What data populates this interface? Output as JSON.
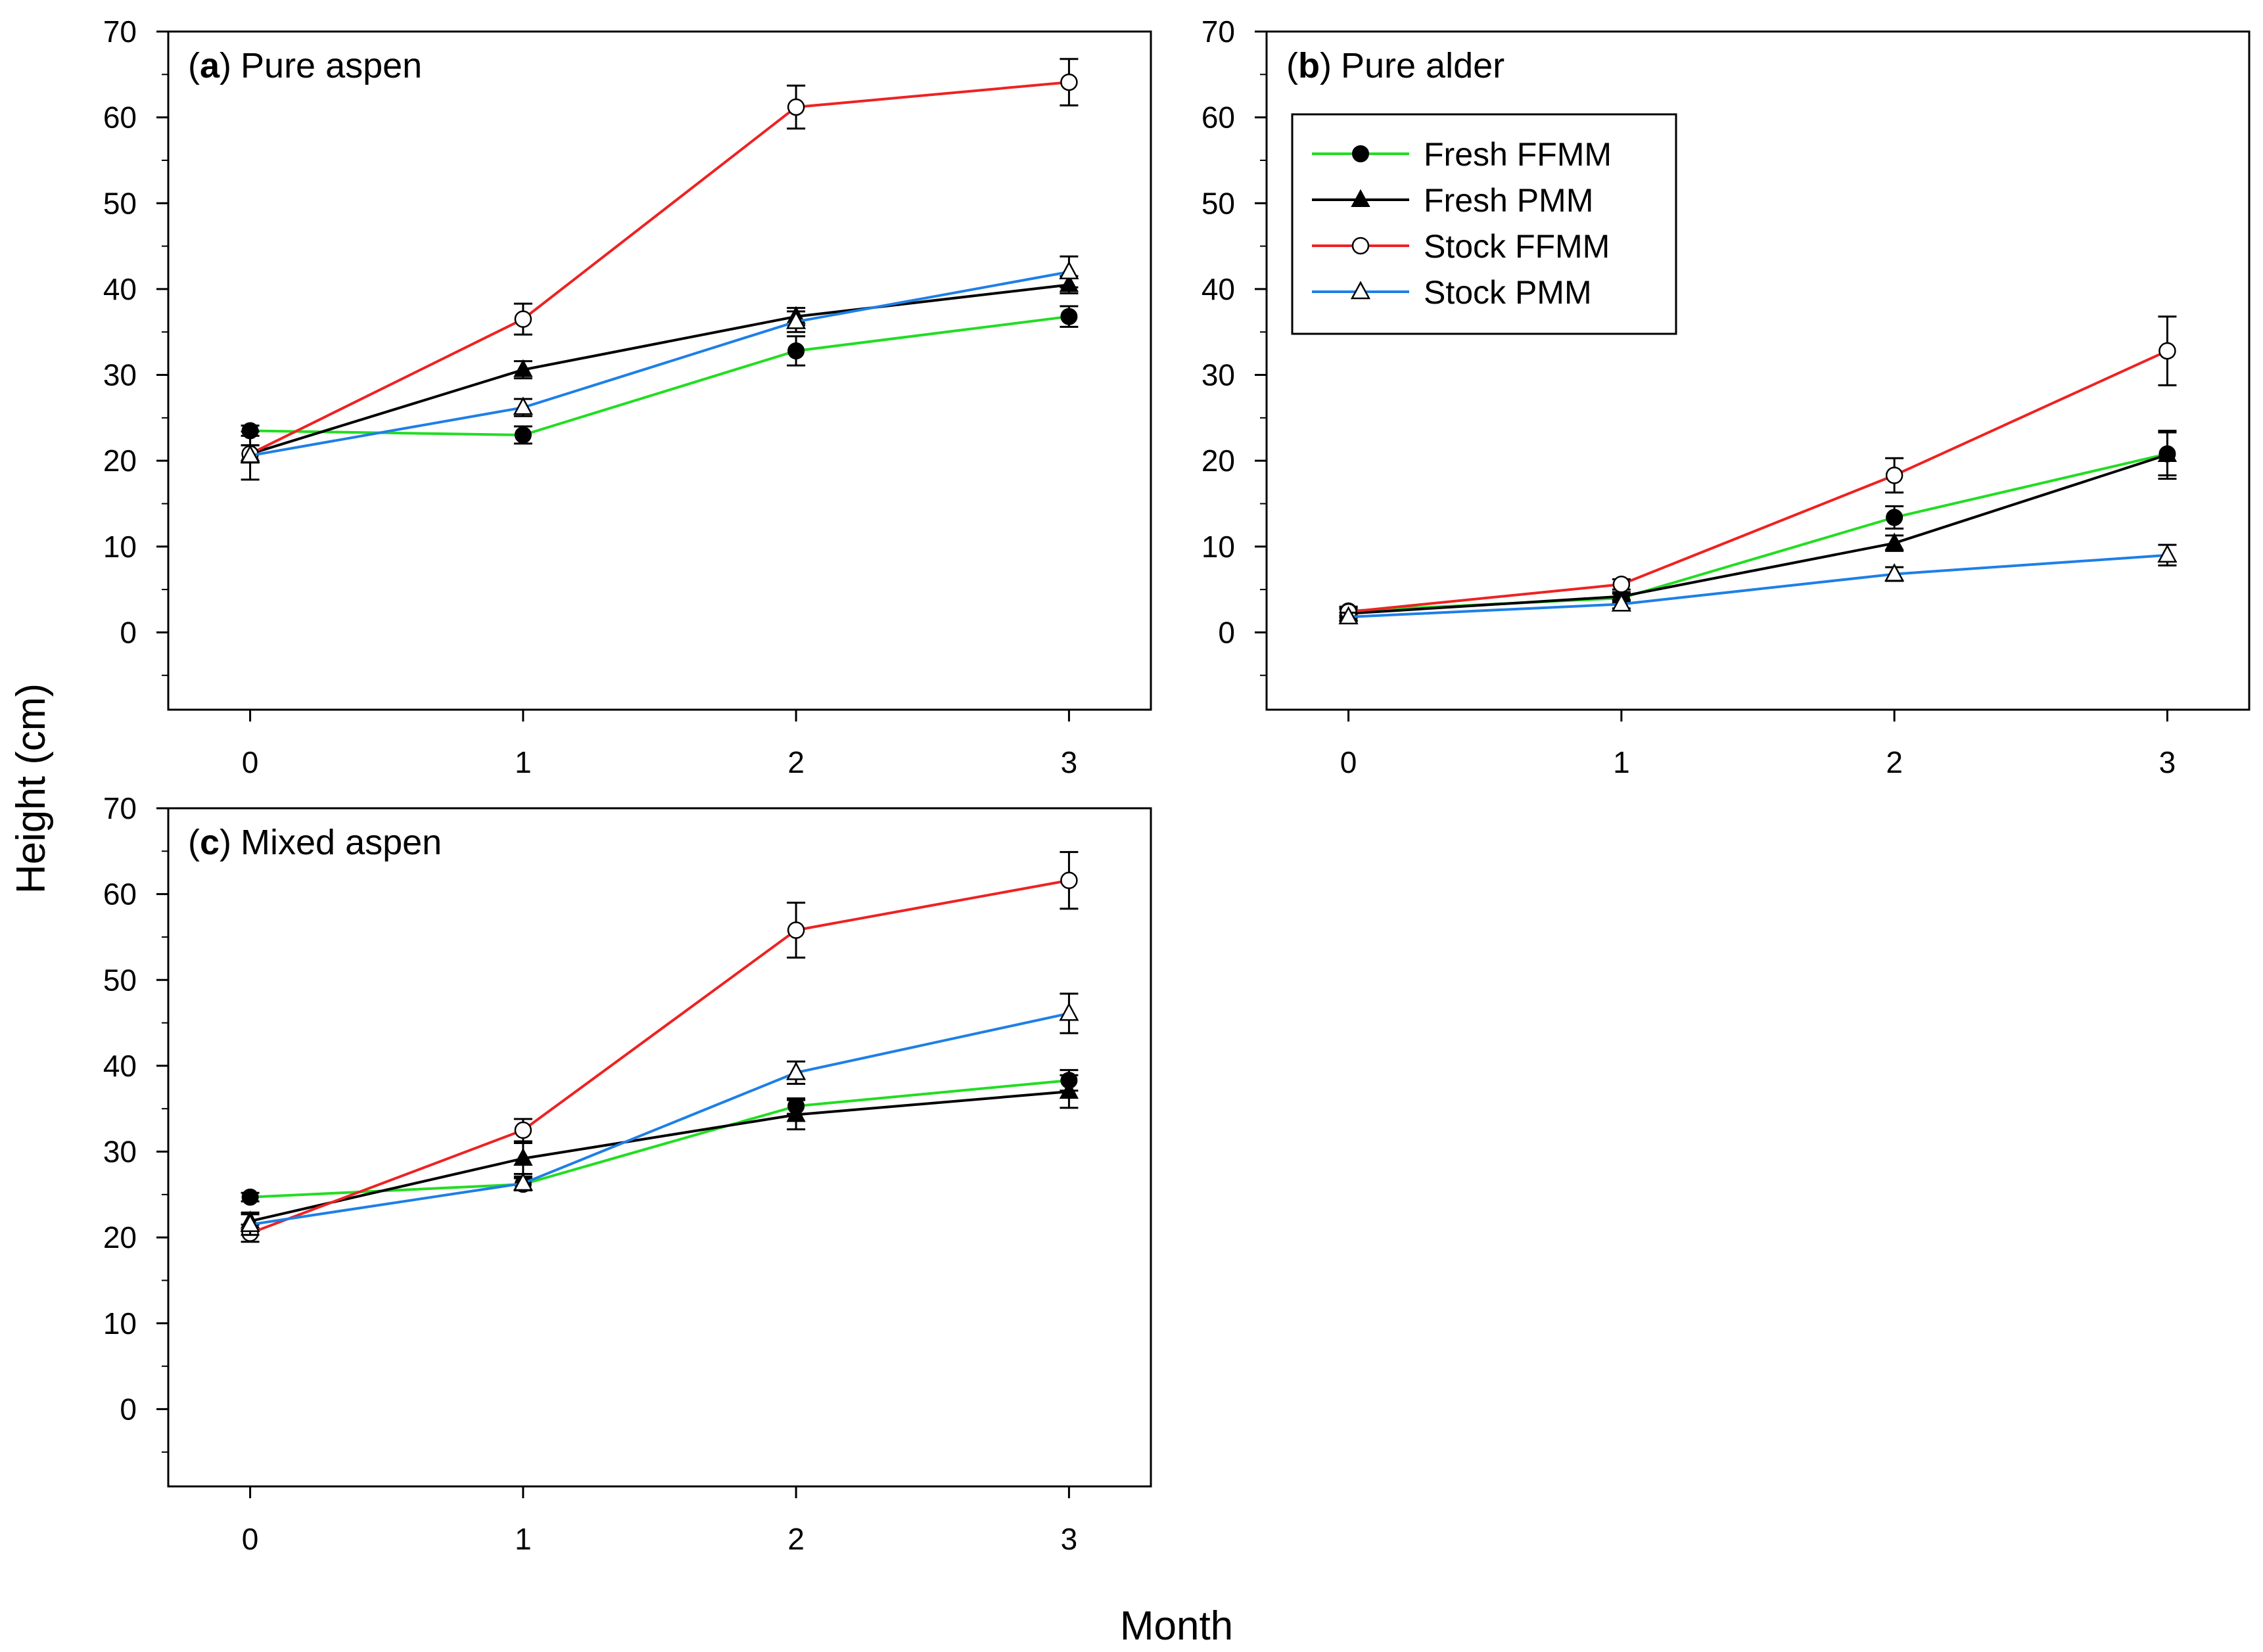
{
  "figure": {
    "xlabel": "Month",
    "ylabel": "Height (cm)"
  },
  "colors": {
    "Fresh FFMM": "#22dd22",
    "Fresh PMM": "#000000",
    "Stock FFMM": "#ee2222",
    "Stock PMM": "#1e7fe6"
  },
  "chart_data": [
    {
      "type": "line",
      "panel": "a",
      "title_letter": "a",
      "title_text": "Pure aspen",
      "open_paren": "(",
      "close_paren": ")",
      "x": [
        0,
        1,
        2,
        3
      ],
      "xticks": [
        "0",
        "1",
        "2",
        "3"
      ],
      "yticks": [
        "0",
        "10",
        "20",
        "30",
        "40",
        "50",
        "60",
        "70"
      ],
      "xlim": [
        -0.3,
        3.3
      ],
      "ylim": [
        -9,
        70
      ],
      "xlabel": "Month",
      "ylabel": "Height (cm)",
      "series": [
        {
          "name": "Fresh FFMM",
          "marker": "filled-circle",
          "values": [
            23.5,
            23.0,
            32.8,
            36.8
          ],
          "errors": [
            0.6,
            1.0,
            1.7,
            1.2
          ]
        },
        {
          "name": "Fresh PMM",
          "marker": "filled-triangle",
          "values": [
            20.8,
            30.6,
            36.8,
            40.5
          ],
          "errors": [
            1.0,
            1.0,
            1.0,
            1.0
          ]
        },
        {
          "name": "Stock FFMM",
          "marker": "open-circle",
          "values": [
            20.8,
            36.5,
            61.2,
            64.1
          ],
          "errors": [
            1.0,
            1.8,
            2.5,
            2.7
          ]
        },
        {
          "name": "Stock PMM",
          "marker": "open-triangle",
          "values": [
            20.6,
            26.2,
            36.2,
            42.0
          ],
          "errors": [
            2.8,
            1.0,
            1.2,
            1.8
          ]
        }
      ]
    },
    {
      "type": "line",
      "panel": "b",
      "title_letter": "b",
      "title_text": "Pure alder",
      "open_paren": "(",
      "close_paren": ")",
      "x": [
        0,
        1,
        2,
        3
      ],
      "xticks": [
        "0",
        "1",
        "2",
        "3"
      ],
      "yticks": [
        "0",
        "10",
        "20",
        "30",
        "40",
        "50",
        "60",
        "70"
      ],
      "xlim": [
        -0.3,
        3.3
      ],
      "ylim": [
        -9,
        70
      ],
      "xlabel": "Month",
      "ylabel": "Height (cm)",
      "series": [
        {
          "name": "Fresh FFMM",
          "marker": "filled-circle",
          "values": [
            2.5,
            4.0,
            13.4,
            20.8
          ],
          "errors": [
            0.5,
            0.5,
            1.3,
            2.5
          ]
        },
        {
          "name": "Fresh PMM",
          "marker": "filled-triangle",
          "values": [
            2.2,
            4.2,
            10.4,
            20.7
          ],
          "errors": [
            0.5,
            0.5,
            0.9,
            2.8
          ]
        },
        {
          "name": "Stock FFMM",
          "marker": "open-circle",
          "values": [
            2.4,
            5.6,
            18.3,
            32.8
          ],
          "errors": [
            0.5,
            0.6,
            2.0,
            4.0
          ]
        },
        {
          "name": "Stock PMM",
          "marker": "open-triangle",
          "values": [
            1.8,
            3.3,
            6.8,
            9.0
          ],
          "errors": [
            0.5,
            0.5,
            0.8,
            1.2
          ]
        }
      ]
    },
    {
      "type": "line",
      "panel": "c",
      "title_letter": "c",
      "title_text": "Mixed aspen",
      "open_paren": "(",
      "close_paren": ")",
      "x": [
        0,
        1,
        2,
        3
      ],
      "xticks": [
        "0",
        "1",
        "2",
        "3"
      ],
      "yticks": [
        "0",
        "10",
        "20",
        "30",
        "40",
        "50",
        "60",
        "70"
      ],
      "xlim": [
        -0.3,
        3.3
      ],
      "ylim": [
        -9,
        70
      ],
      "xlabel": "Month",
      "ylabel": "Height (cm)",
      "series": [
        {
          "name": "Fresh FFMM",
          "marker": "filled-circle",
          "values": [
            24.7,
            26.2,
            35.3,
            38.3
          ],
          "errors": [
            0.5,
            0.7,
            0.9,
            1.2
          ]
        },
        {
          "name": "Fresh PMM",
          "marker": "filled-triangle",
          "values": [
            21.9,
            29.2,
            34.3,
            37.0
          ],
          "errors": [
            1.0,
            1.8,
            1.7,
            1.9
          ]
        },
        {
          "name": "Stock FFMM",
          "marker": "open-circle",
          "values": [
            20.5,
            32.5,
            55.8,
            61.6
          ],
          "errors": [
            1.0,
            1.3,
            3.2,
            3.3
          ]
        },
        {
          "name": "Stock PMM",
          "marker": "open-triangle",
          "values": [
            21.5,
            26.3,
            39.2,
            46.1
          ],
          "errors": [
            1.2,
            0.8,
            1.3,
            2.3
          ]
        }
      ]
    }
  ],
  "legend": {
    "entries": [
      "Fresh FFMM",
      "Fresh PMM",
      "Stock FFMM",
      "Stock PMM"
    ],
    "placement": "top-left of panel b"
  }
}
